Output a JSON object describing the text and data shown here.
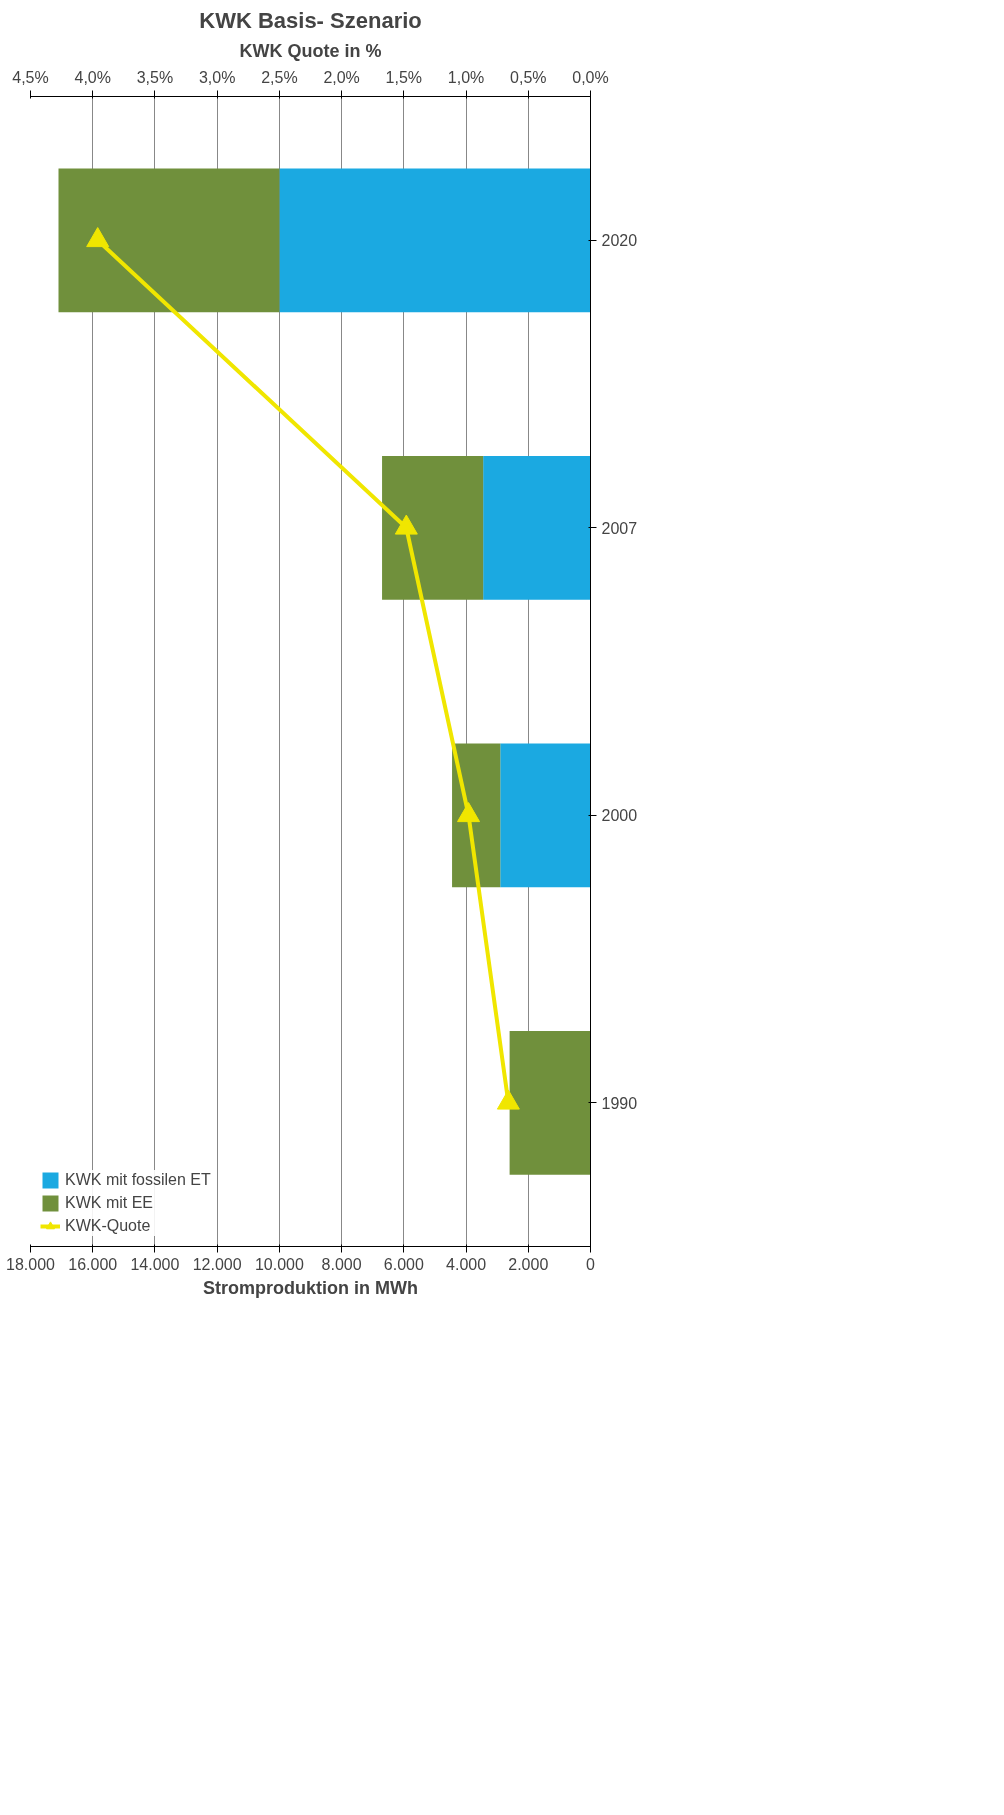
{
  "chart_data": {
    "type": "bar",
    "title": "KWK Basis- Szenario",
    "xlabel": "Stromproduktion in MWh",
    "x2label": "KWK Quote in %",
    "orientation": "horizontal",
    "stacked": true,
    "categories": [
      "2020",
      "2007",
      "2000",
      "1990"
    ],
    "series": [
      {
        "name": "KWK mit fossilen ET",
        "color": "#1ba9e1",
        "values": [
          10000,
          3450,
          2900,
          0
        ]
      },
      {
        "name": "KWK mit EE",
        "color": "#70903c",
        "values": [
          7100,
          3250,
          1550,
          2600
        ]
      },
      {
        "name": "KWK-Quote",
        "type": "line",
        "axis": "x2",
        "color": "#f0e600",
        "marker": "triangle",
        "values": [
          3.96,
          1.48,
          0.98,
          0.66
        ]
      }
    ],
    "xlim": [
      18000,
      0
    ],
    "xticks": [
      {
        "value": 18000,
        "label": "18.000"
      },
      {
        "value": 16000,
        "label": "16.000"
      },
      {
        "value": 14000,
        "label": "14.000"
      },
      {
        "value": 12000,
        "label": "12.000"
      },
      {
        "value": 10000,
        "label": "10.000"
      },
      {
        "value": 8000,
        "label": "8.000"
      },
      {
        "value": 6000,
        "label": "6.000"
      },
      {
        "value": 4000,
        "label": "4.000"
      },
      {
        "value": 2000,
        "label": "2.000"
      },
      0
    ],
    "x2lim": [
      4.5,
      0
    ],
    "x2ticks": [
      {
        "value": 4.5,
        "label": "4,5%"
      },
      {
        "value": 4.0,
        "label": "4,0%"
      },
      {
        "value": 3.5,
        "label": "3,5%"
      },
      {
        "value": 3.0,
        "label": "3,0%"
      },
      {
        "value": 2.5,
        "label": "2,5%"
      },
      {
        "value": 2.0,
        "label": "2,0%"
      },
      {
        "value": 1.5,
        "label": "1,5%"
      },
      {
        "value": 1.0,
        "label": "1,0%"
      },
      {
        "value": 0.5,
        "label": "0,5%"
      },
      {
        "value": 0.0,
        "label": "0,0%"
      }
    ],
    "grid": "x",
    "legend": "bottom left"
  }
}
